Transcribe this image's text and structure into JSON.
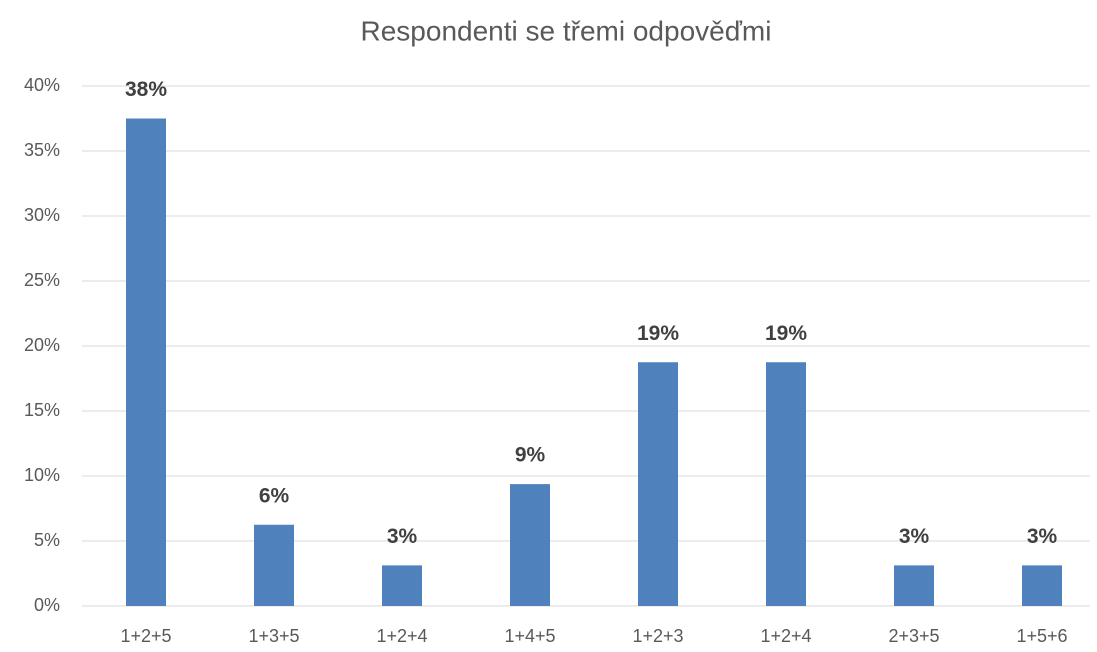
{
  "chart_data": {
    "type": "bar",
    "title": "Respondenti se třemi odpověďmi",
    "categories": [
      "1+2+5",
      "1+3+5",
      "1+2+4",
      "1+4+5",
      "1+2+3",
      "1+2+4",
      "2+3+5",
      "1+5+6"
    ],
    "values": [
      37.5,
      6.25,
      3.125,
      9.375,
      18.75,
      18.75,
      3.125,
      3.125
    ],
    "value_labels": [
      "38%",
      "6%",
      "3%",
      "9%",
      "19%",
      "19%",
      "3%",
      "3%"
    ],
    "color": "#4f81bd",
    "ylim": [
      0,
      40
    ],
    "yticks": [
      {
        "value": 0,
        "label": "0%"
      },
      {
        "value": 5,
        "label": "5%"
      },
      {
        "value": 10,
        "label": "10%"
      },
      {
        "value": 15,
        "label": "15%"
      },
      {
        "value": 20,
        "label": "20%"
      },
      {
        "value": 25,
        "label": "25%"
      },
      {
        "value": 30,
        "label": "30%"
      },
      {
        "value": 35,
        "label": "35%"
      },
      {
        "value": 40,
        "label": "40%"
      }
    ],
    "grid": true
  }
}
